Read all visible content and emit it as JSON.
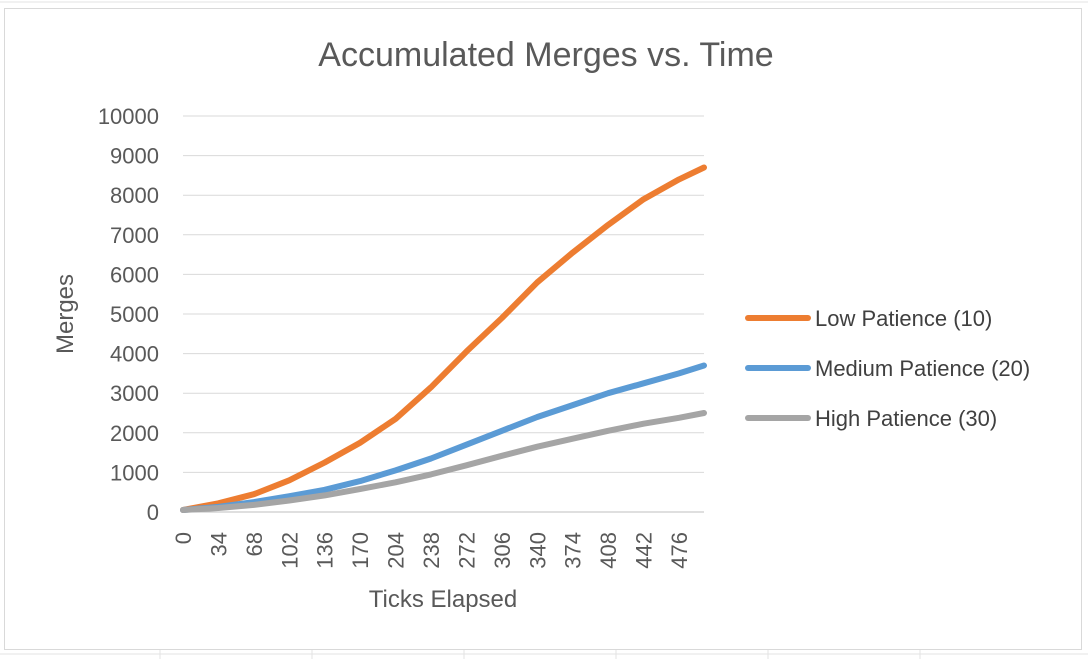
{
  "chart_data": {
    "type": "line",
    "title": "Accumulated Merges vs. Time",
    "xlabel": "Ticks Elapsed",
    "ylabel": "Merges",
    "x_tick_labels": [
      "0",
      "34",
      "68",
      "102",
      "136",
      "170",
      "204",
      "238",
      "272",
      "306",
      "340",
      "374",
      "408",
      "442",
      "476"
    ],
    "y_tick_labels": [
      "0",
      "1000",
      "2000",
      "3000",
      "4000",
      "5000",
      "6000",
      "7000",
      "8000",
      "9000",
      "10000"
    ],
    "xlim": [
      0,
      500
    ],
    "ylim": [
      0,
      10000
    ],
    "grid": "horizontal",
    "legend_position": "right",
    "x": [
      0,
      34,
      68,
      102,
      136,
      170,
      204,
      238,
      272,
      306,
      340,
      374,
      408,
      442,
      476,
      500
    ],
    "series": [
      {
        "name": "Low Patience (10)",
        "color": "#ed7d31",
        "values": [
          50,
          220,
          450,
          800,
          1250,
          1750,
          2350,
          3150,
          4050,
          4900,
          5800,
          6550,
          7250,
          7900,
          8400,
          8700
        ]
      },
      {
        "name": "Medium Patience (20)",
        "color": "#5b9bd5",
        "values": [
          50,
          130,
          250,
          400,
          560,
          780,
          1050,
          1350,
          1700,
          2050,
          2400,
          2700,
          3000,
          3250,
          3500,
          3700
        ]
      },
      {
        "name": "High Patience (30)",
        "color": "#a5a5a5",
        "values": [
          50,
          100,
          180,
          290,
          420,
          580,
          750,
          950,
          1180,
          1420,
          1650,
          1850,
          2050,
          2230,
          2380,
          2500
        ]
      }
    ]
  }
}
